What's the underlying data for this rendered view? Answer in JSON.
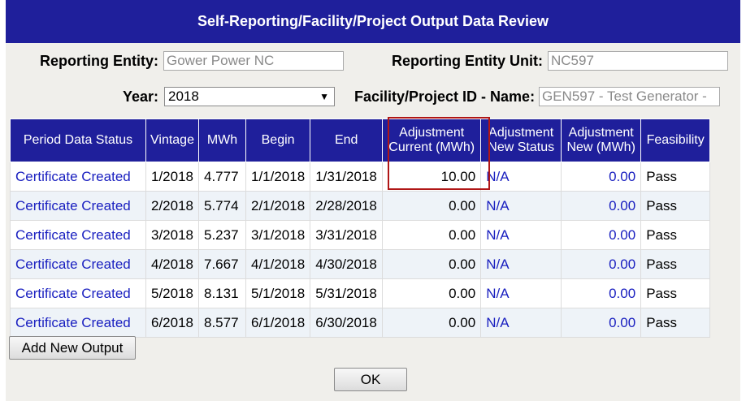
{
  "title": "Self-Reporting/Facility/Project Output Data Review",
  "form": {
    "reporting_entity_label": "Reporting Entity:",
    "reporting_entity_value": "Gower Power NC",
    "reporting_entity_unit_label": "Reporting Entity Unit:",
    "reporting_entity_unit_value": "NC597",
    "year_label": "Year:",
    "year_value": "2018",
    "facility_label": "Facility/Project ID - Name:",
    "facility_value": "GEN597 - Test Generator -"
  },
  "table": {
    "headers": [
      "Period Data Status",
      "Vintage",
      "MWh",
      "Begin",
      "End",
      "Adjustment Current (MWh)",
      "Adjustment New Status",
      "Adjustment New (MWh)",
      "Feasibility"
    ],
    "rows": [
      [
        "Certificate Created",
        "1/2018",
        "4.777",
        "1/1/2018",
        "1/31/2018",
        "10.00",
        "N/A",
        "0.00",
        "Pass"
      ],
      [
        "Certificate Created",
        "2/2018",
        "5.774",
        "2/1/2018",
        "2/28/2018",
        "0.00",
        "N/A",
        "0.00",
        "Pass"
      ],
      [
        "Certificate Created",
        "3/2018",
        "5.237",
        "3/1/2018",
        "3/31/2018",
        "0.00",
        "N/A",
        "0.00",
        "Pass"
      ],
      [
        "Certificate Created",
        "4/2018",
        "7.667",
        "4/1/2018",
        "4/30/2018",
        "0.00",
        "N/A",
        "0.00",
        "Pass"
      ],
      [
        "Certificate Created",
        "5/2018",
        "8.131",
        "5/1/2018",
        "5/31/2018",
        "0.00",
        "N/A",
        "0.00",
        "Pass"
      ],
      [
        "Certificate Created",
        "6/2018",
        "8.577",
        "6/1/2018",
        "6/30/2018",
        "0.00",
        "N/A",
        "0.00",
        "Pass"
      ]
    ]
  },
  "buttons": {
    "add_new_output": "Add New Output",
    "ok": "OK"
  },
  "colors": {
    "header_blue": "#1f1f9b",
    "link_blue": "#1a20c0",
    "highlight_red": "#b01616"
  }
}
